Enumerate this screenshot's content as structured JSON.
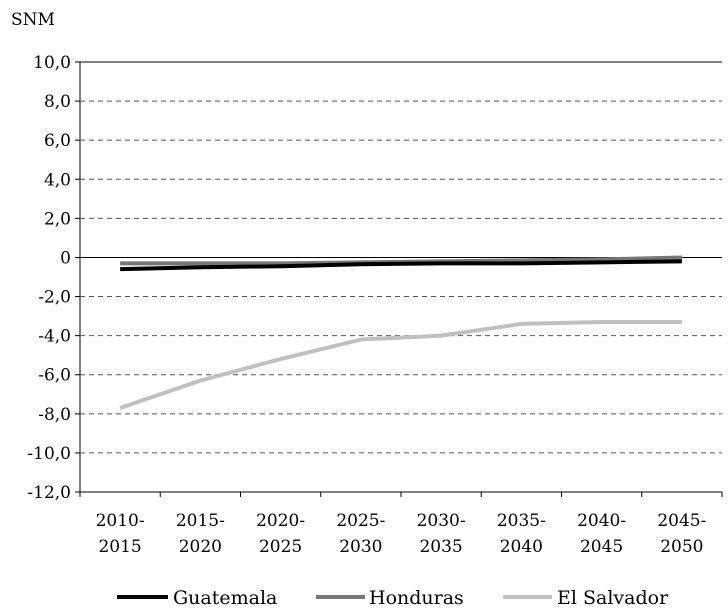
{
  "chart_data": {
    "type": "line",
    "unit_label": "SNM",
    "categories": [
      [
        "2010-",
        "2015"
      ],
      [
        "2015-",
        "2020"
      ],
      [
        "2020-",
        "2025"
      ],
      [
        "2025-",
        "2030"
      ],
      [
        "2030-",
        "2035"
      ],
      [
        "2035-",
        "2040"
      ],
      [
        "2040-",
        "2045"
      ],
      [
        "2045-",
        "2050"
      ]
    ],
    "y_ticks": [
      "10,0",
      "8,0",
      "6,0",
      "4,0",
      "2,0",
      "0",
      "-2,0",
      "-4,0",
      "-6,0",
      "-8,0",
      "-10,0",
      "-12,0"
    ],
    "ylim": [
      -12,
      10
    ],
    "grid": "horizontal-dashed",
    "legend_position": "bottom",
    "series": [
      {
        "name": "Guatemala",
        "color": "#000000",
        "values": [
          -0.6,
          -0.5,
          -0.45,
          -0.35,
          -0.3,
          -0.3,
          -0.25,
          -0.2
        ]
      },
      {
        "name": "Honduras",
        "color": "#777777",
        "values": [
          -0.3,
          -0.3,
          -0.3,
          -0.25,
          -0.2,
          -0.15,
          -0.1,
          0.0
        ]
      },
      {
        "name": "El Salvador",
        "color": "#c0c0c0",
        "values": [
          -7.7,
          -6.3,
          -5.2,
          -4.2,
          -4.0,
          -3.4,
          -3.3,
          -3.3
        ]
      }
    ]
  }
}
